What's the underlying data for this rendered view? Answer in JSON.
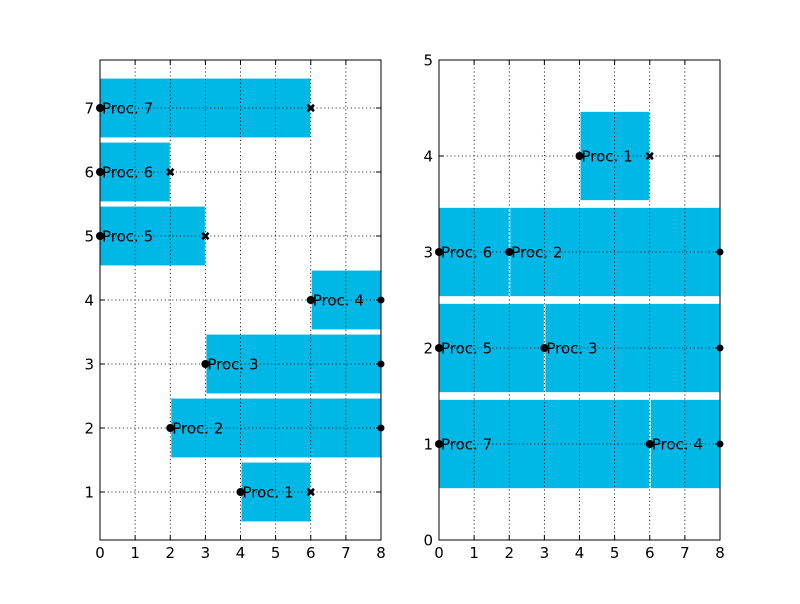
{
  "colors": {
    "bar": "#00b8e5",
    "marker": "#000000",
    "background": "#ffffff"
  },
  "chart_data": [
    {
      "type": "bar",
      "orientation": "horizontal",
      "title": "",
      "xlabel": "",
      "ylabel": "",
      "xlim": [
        0,
        8
      ],
      "ylim": [
        0.25,
        7.75
      ],
      "xticks": [
        "0",
        "1",
        "2",
        "3",
        "4",
        "5",
        "6",
        "7",
        "8"
      ],
      "yticks": [
        "1",
        "2",
        "3",
        "4",
        "5",
        "6",
        "7"
      ],
      "grid": true,
      "bars": [
        {
          "label": "Proc. 1",
          "row": 1,
          "start": 4,
          "end": 6,
          "end_marker": "x"
        },
        {
          "label": "Proc. 2",
          "row": 2,
          "start": 2,
          "end": 8,
          "end_marker": "dot"
        },
        {
          "label": "Proc. 3",
          "row": 3,
          "start": 3,
          "end": 8,
          "end_marker": "dot"
        },
        {
          "label": "Proc. 4",
          "row": 4,
          "start": 6,
          "end": 8,
          "end_marker": "dot"
        },
        {
          "label": "Proc. 5",
          "row": 5,
          "start": 0,
          "end": 3,
          "end_marker": "x"
        },
        {
          "label": "Proc. 6",
          "row": 6,
          "start": 0,
          "end": 2,
          "end_marker": "x"
        },
        {
          "label": "Proc. 7",
          "row": 7,
          "start": 0,
          "end": 6,
          "end_marker": "x"
        }
      ]
    },
    {
      "type": "bar",
      "orientation": "horizontal",
      "title": "",
      "xlabel": "",
      "ylabel": "",
      "xlim": [
        0,
        8
      ],
      "ylim": [
        0,
        5
      ],
      "xticks": [
        "0",
        "1",
        "2",
        "3",
        "4",
        "5",
        "6",
        "7",
        "8"
      ],
      "yticks": [
        "0",
        "1",
        "2",
        "3",
        "4",
        "5"
      ],
      "grid": true,
      "bars": [
        {
          "label": "Proc. 1",
          "row": 4,
          "start": 4,
          "end": 6,
          "end_marker": "x"
        },
        {
          "label": "Proc. 6",
          "row": 3,
          "start": 0,
          "end": 2,
          "end_marker": "dot"
        },
        {
          "label": "Proc. 2",
          "row": 3,
          "start": 2,
          "end": 8,
          "end_marker": "dot"
        },
        {
          "label": "Proc. 5",
          "row": 2,
          "start": 0,
          "end": 3,
          "end_marker": "dot"
        },
        {
          "label": "Proc. 3",
          "row": 2,
          "start": 3,
          "end": 8,
          "end_marker": "dot"
        },
        {
          "label": "Proc. 7",
          "row": 1,
          "start": 0,
          "end": 6,
          "end_marker": "dot"
        },
        {
          "label": "Proc. 4",
          "row": 1,
          "start": 6,
          "end": 8,
          "end_marker": "dot"
        }
      ]
    }
  ]
}
